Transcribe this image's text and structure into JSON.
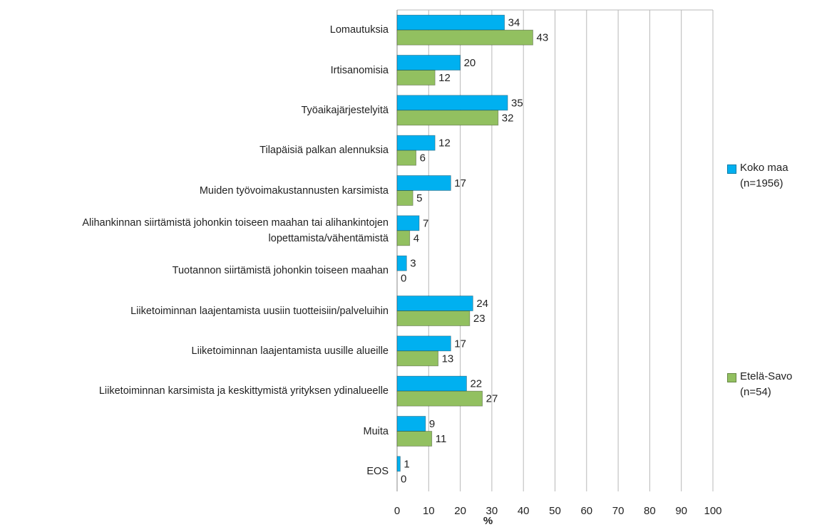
{
  "chart_data": {
    "type": "bar",
    "orientation": "horizontal",
    "categories": [
      "Lomautuksia",
      "Irtisanomisia",
      "Työaikajärjestelyitä",
      "Tilapäisiä palkan alennuksia",
      "Muiden työvoimakustannusten karsimista",
      "Alihankinnan siirtämistä johonkin toiseen maahan tai alihankintojen lopettamista/vähentämistä",
      "Tuotannon siirtämistä johonkin toiseen maahan",
      "Liiketoiminnan laajentamista uusiin tuotteisiin/palveluihin",
      "Liiketoiminnan laajentamista uusille alueille",
      "Liiketoiminnan karsimista ja keskittymistä yrityksen ydinalueelle",
      "Muita",
      "EOS"
    ],
    "series": [
      {
        "name": "Koko maa (n=1956)",
        "color": "#00b0f0",
        "values": [
          34,
          20,
          35,
          12,
          17,
          7,
          3,
          24,
          17,
          22,
          9,
          1
        ]
      },
      {
        "name": "Etelä-Savo (n=54)",
        "color": "#92c060",
        "values": [
          43,
          12,
          32,
          6,
          5,
          4,
          0,
          23,
          13,
          27,
          11,
          0
        ]
      }
    ],
    "xlabel": "%",
    "xlim": [
      0,
      100
    ],
    "xticks": [
      0,
      10,
      20,
      30,
      40,
      50,
      60,
      70,
      80,
      90,
      100
    ],
    "grid": true,
    "legend": "right"
  }
}
